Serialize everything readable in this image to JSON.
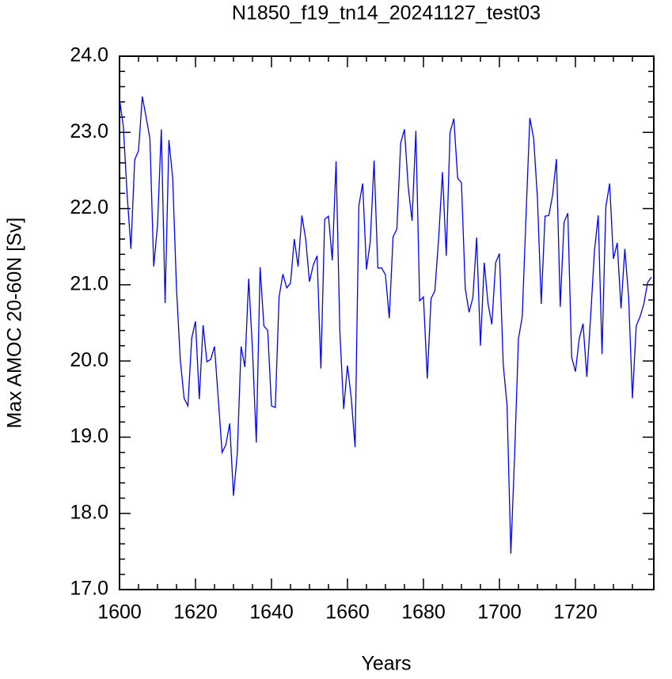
{
  "chart_data": {
    "type": "line",
    "title": "N1850_f19_tn14_20241127_test03",
    "xlabel": "Years",
    "ylabel": "Max AMOC 20-60N [Sv]",
    "x": [
      1600,
      1601,
      1602,
      1603,
      1604,
      1605,
      1606,
      1607,
      1608,
      1609,
      1610,
      1611,
      1612,
      1613,
      1614,
      1615,
      1616,
      1617,
      1618,
      1619,
      1620,
      1621,
      1622,
      1623,
      1624,
      1625,
      1626,
      1627,
      1628,
      1629,
      1630,
      1631,
      1632,
      1633,
      1634,
      1635,
      1636,
      1637,
      1638,
      1639,
      1640,
      1641,
      1642,
      1643,
      1644,
      1645,
      1646,
      1647,
      1648,
      1649,
      1650,
      1651,
      1652,
      1653,
      1654,
      1655,
      1656,
      1657,
      1658,
      1659,
      1660,
      1661,
      1662,
      1663,
      1664,
      1665,
      1666,
      1667,
      1668,
      1669,
      1670,
      1671,
      1672,
      1673,
      1674,
      1675,
      1676,
      1677,
      1678,
      1679,
      1680,
      1681,
      1682,
      1683,
      1684,
      1685,
      1686,
      1687,
      1688,
      1689,
      1690,
      1691,
      1692,
      1693,
      1694,
      1695,
      1696,
      1697,
      1698,
      1699,
      1700,
      1701,
      1702,
      1703,
      1704,
      1705,
      1706,
      1707,
      1708,
      1709,
      1710,
      1711,
      1712,
      1713,
      1714,
      1715,
      1716,
      1717,
      1718,
      1719,
      1720,
      1721,
      1722,
      1723,
      1724,
      1725,
      1726,
      1727,
      1728,
      1729,
      1730,
      1731,
      1732,
      1733,
      1734,
      1735,
      1736,
      1737,
      1738,
      1739,
      1740
    ],
    "series": [
      {
        "color": "#0000ff",
        "values": [
          23.44,
          23.08,
          22.19,
          21.47,
          22.64,
          22.76,
          23.47,
          23.2,
          22.92,
          21.24,
          21.78,
          23.04,
          20.76,
          22.9,
          22.4,
          20.95,
          20.01,
          19.51,
          19.41,
          20.3,
          20.52,
          19.5,
          20.47,
          19.99,
          20.02,
          20.19,
          19.5,
          18.8,
          18.9,
          19.18,
          18.23,
          18.79,
          20.19,
          19.92,
          21.08,
          20.14,
          18.93,
          21.23,
          20.46,
          20.4,
          19.41,
          19.39,
          20.84,
          21.14,
          20.96,
          21.02,
          21.6,
          21.24,
          21.91,
          21.6,
          21.04,
          21.26,
          21.38,
          19.9,
          21.86,
          21.9,
          21.32,
          22.62,
          20.38,
          19.37,
          19.94,
          19.51,
          18.87,
          22.04,
          22.33,
          21.2,
          21.57,
          22.63,
          21.22,
          21.22,
          21.13,
          20.56,
          21.63,
          21.73,
          22.86,
          23.04,
          22.28,
          21.84,
          23.02,
          20.79,
          20.84,
          19.77,
          20.82,
          20.92,
          21.61,
          22.48,
          21.38,
          23.0,
          23.18,
          22.4,
          22.34,
          20.95,
          20.64,
          20.83,
          21.62,
          20.2,
          21.29,
          20.75,
          20.48,
          21.29,
          21.41,
          19.95,
          19.42,
          17.47,
          18.77,
          20.29,
          20.58,
          21.91,
          23.19,
          22.92,
          22.14,
          20.75,
          21.9,
          21.91,
          22.18,
          22.65,
          20.71,
          21.82,
          21.94,
          20.05,
          19.86,
          20.29,
          20.49,
          19.79,
          20.58,
          21.44,
          21.91,
          20.09,
          22.02,
          22.33,
          21.34,
          21.55,
          20.69,
          21.47,
          20.84,
          19.51,
          20.46,
          20.58,
          20.75,
          21.03,
          21.1
        ]
      }
    ],
    "xlim": [
      1600,
      1740
    ],
    "ylim": [
      17,
      24
    ],
    "xticks": [
      1600,
      1620,
      1640,
      1660,
      1680,
      1700,
      1720
    ],
    "yticks": [
      {
        "value": 17,
        "label": "17.0"
      },
      {
        "value": 18,
        "label": "18.0"
      },
      {
        "value": 19,
        "label": "19.0"
      },
      {
        "value": 20,
        "label": "20.0"
      },
      {
        "value": 21,
        "label": "21.0"
      },
      {
        "value": 22,
        "label": "22.0"
      },
      {
        "value": 23,
        "label": "23.0"
      },
      {
        "value": 24,
        "label": "24.0"
      }
    ],
    "xminorticks": [
      1605,
      1610,
      1615,
      1625,
      1630,
      1635,
      1645,
      1650,
      1655,
      1665,
      1670,
      1675,
      1685,
      1690,
      1695,
      1705,
      1710,
      1715,
      1725,
      1730,
      1735
    ],
    "yminorticks": [
      17.2,
      17.4,
      17.6,
      17.8,
      18.2,
      18.4,
      18.6,
      18.8,
      19.2,
      19.4,
      19.6,
      19.8,
      20.2,
      20.4,
      20.6,
      20.8,
      21.2,
      21.4,
      21.6,
      21.8,
      22.2,
      22.4,
      22.6,
      22.8,
      23.2,
      23.4,
      23.6,
      23.8
    ]
  }
}
